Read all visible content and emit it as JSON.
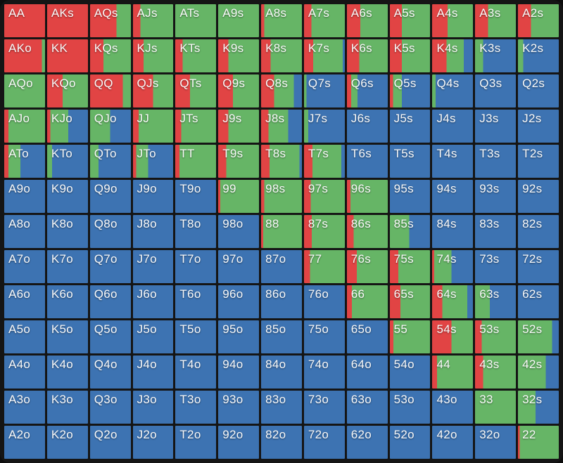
{
  "colors": {
    "red": "#e14444",
    "green": "#66b566",
    "blue": "#3d73b2",
    "board_background": "#151515",
    "label_text": "#fafafa"
  },
  "chart_data": {
    "type": "heatmap",
    "title": "",
    "description_keys": [
      "hand",
      "red_pct",
      "green_pct",
      "blue_pct"
    ],
    "rows": [
      [
        [
          "AA",
          100,
          0,
          0
        ],
        [
          "AKs",
          100,
          0,
          0
        ],
        [
          "AQs",
          65,
          35,
          0
        ],
        [
          "AJs",
          18,
          82,
          0
        ],
        [
          "ATs",
          0,
          100,
          0
        ],
        [
          "A9s",
          0,
          100,
          0
        ],
        [
          "A8s",
          8,
          92,
          0
        ],
        [
          "A7s",
          18,
          82,
          0
        ],
        [
          "A6s",
          33,
          67,
          0
        ],
        [
          "A5s",
          30,
          70,
          0
        ],
        [
          "A4s",
          38,
          62,
          0
        ],
        [
          "A3s",
          32,
          68,
          0
        ],
        [
          "A2s",
          32,
          68,
          0
        ]
      ],
      [
        [
          "AKo",
          92,
          8,
          0
        ],
        [
          "KK",
          100,
          0,
          0
        ],
        [
          "KQs",
          33,
          67,
          0
        ],
        [
          "KJs",
          26,
          74,
          0
        ],
        [
          "KTs",
          18,
          82,
          0
        ],
        [
          "K9s",
          25,
          75,
          0
        ],
        [
          "K8s",
          23,
          77,
          0
        ],
        [
          "K7s",
          22,
          73,
          5
        ],
        [
          "K6s",
          30,
          70,
          0
        ],
        [
          "K5s",
          30,
          70,
          0
        ],
        [
          "K4s",
          35,
          43,
          22
        ],
        [
          "K3s",
          0,
          20,
          80
        ],
        [
          "K2s",
          0,
          13,
          87
        ]
      ],
      [
        [
          "AQo",
          0,
          100,
          0
        ],
        [
          "KQo",
          38,
          62,
          0
        ],
        [
          "QQ",
          80,
          20,
          0
        ],
        [
          "QJs",
          50,
          50,
          0
        ],
        [
          "QTs",
          36,
          64,
          0
        ],
        [
          "Q9s",
          36,
          64,
          0
        ],
        [
          "Q8s",
          32,
          48,
          20
        ],
        [
          "Q7s",
          0,
          6,
          94
        ],
        [
          "Q6s",
          10,
          16,
          74
        ],
        [
          "Q5s",
          8,
          22,
          70
        ],
        [
          "Q4s",
          0,
          9,
          91
        ],
        [
          "Q3s",
          0,
          0,
          100
        ],
        [
          "Q2s",
          0,
          0,
          100
        ]
      ],
      [
        [
          "AJo",
          10,
          90,
          0
        ],
        [
          "KJo",
          8,
          44,
          48
        ],
        [
          "QJo",
          0,
          49,
          51
        ],
        [
          "JJ",
          14,
          86,
          0
        ],
        [
          "JTs",
          15,
          85,
          0
        ],
        [
          "J9s",
          25,
          75,
          0
        ],
        [
          "J8s",
          18,
          48,
          34
        ],
        [
          "J7s",
          0,
          10,
          90
        ],
        [
          "J6s",
          0,
          0,
          100
        ],
        [
          "J5s",
          0,
          0,
          100
        ],
        [
          "J4s",
          0,
          0,
          100
        ],
        [
          "J3s",
          0,
          0,
          100
        ],
        [
          "J2s",
          0,
          0,
          100
        ]
      ],
      [
        [
          "ATo",
          10,
          30,
          60
        ],
        [
          "KTo",
          0,
          12,
          88
        ],
        [
          "QTo",
          0,
          21,
          79
        ],
        [
          "JTo",
          8,
          30,
          62
        ],
        [
          "TT",
          10,
          90,
          0
        ],
        [
          "T9s",
          20,
          80,
          0
        ],
        [
          "T8s",
          21,
          73,
          6
        ],
        [
          "T7s",
          21,
          70,
          9
        ],
        [
          "T6s",
          0,
          0,
          100
        ],
        [
          "T5s",
          0,
          0,
          100
        ],
        [
          "T4s",
          0,
          0,
          100
        ],
        [
          "T3s",
          0,
          0,
          100
        ],
        [
          "T2s",
          0,
          0,
          100
        ]
      ],
      [
        [
          "A9o",
          0,
          0,
          100
        ],
        [
          "K9o",
          0,
          0,
          100
        ],
        [
          "Q9o",
          0,
          0,
          100
        ],
        [
          "J9o",
          0,
          0,
          100
        ],
        [
          "T9o",
          0,
          0,
          100
        ],
        [
          "99",
          5,
          95,
          0
        ],
        [
          "98s",
          8,
          92,
          0
        ],
        [
          "97s",
          16,
          84,
          0
        ],
        [
          "96s",
          9,
          91,
          0
        ],
        [
          "95s",
          0,
          0,
          100
        ],
        [
          "94s",
          0,
          0,
          100
        ],
        [
          "93s",
          0,
          0,
          100
        ],
        [
          "92s",
          0,
          0,
          100
        ]
      ],
      [
        [
          "A8o",
          0,
          0,
          100
        ],
        [
          "K8o",
          0,
          0,
          100
        ],
        [
          "Q8o",
          0,
          0,
          100
        ],
        [
          "J8o",
          0,
          0,
          100
        ],
        [
          "T8o",
          0,
          0,
          100
        ],
        [
          "98o",
          0,
          0,
          100
        ],
        [
          "88",
          5,
          95,
          0
        ],
        [
          "87s",
          19,
          81,
          0
        ],
        [
          "86s",
          16,
          84,
          0
        ],
        [
          "85s",
          0,
          48,
          52
        ],
        [
          "84s",
          0,
          0,
          100
        ],
        [
          "83s",
          0,
          0,
          100
        ],
        [
          "82s",
          0,
          0,
          100
        ]
      ],
      [
        [
          "A7o",
          0,
          0,
          100
        ],
        [
          "K7o",
          0,
          0,
          100
        ],
        [
          "Q7o",
          0,
          0,
          100
        ],
        [
          "J7o",
          0,
          0,
          100
        ],
        [
          "T7o",
          0,
          0,
          100
        ],
        [
          "97o",
          0,
          0,
          100
        ],
        [
          "87o",
          0,
          0,
          100
        ],
        [
          "77",
          15,
          85,
          0
        ],
        [
          "76s",
          24,
          76,
          0
        ],
        [
          "75s",
          21,
          79,
          0
        ],
        [
          "74s",
          5,
          42,
          53
        ],
        [
          "73s",
          0,
          0,
          100
        ],
        [
          "72s",
          0,
          0,
          100
        ]
      ],
      [
        [
          "A6o",
          0,
          0,
          100
        ],
        [
          "K6o",
          0,
          0,
          100
        ],
        [
          "Q6o",
          0,
          0,
          100
        ],
        [
          "J6o",
          0,
          0,
          100
        ],
        [
          "T6o",
          0,
          0,
          100
        ],
        [
          "96o",
          0,
          0,
          100
        ],
        [
          "86o",
          0,
          0,
          100
        ],
        [
          "76o",
          0,
          0,
          100
        ],
        [
          "66",
          12,
          88,
          0
        ],
        [
          "65s",
          26,
          74,
          0
        ],
        [
          "64s",
          25,
          61,
          14
        ],
        [
          "63s",
          0,
          36,
          64
        ],
        [
          "62s",
          0,
          0,
          100
        ]
      ],
      [
        [
          "A5o",
          0,
          0,
          100
        ],
        [
          "K5o",
          0,
          0,
          100
        ],
        [
          "Q5o",
          0,
          0,
          100
        ],
        [
          "J5o",
          0,
          0,
          100
        ],
        [
          "T5o",
          0,
          0,
          100
        ],
        [
          "95o",
          0,
          0,
          100
        ],
        [
          "85o",
          0,
          0,
          100
        ],
        [
          "75o",
          0,
          0,
          100
        ],
        [
          "65o",
          0,
          0,
          100
        ],
        [
          "55",
          9,
          91,
          0
        ],
        [
          "54s",
          47,
          53,
          0
        ],
        [
          "53s",
          16,
          84,
          0
        ],
        [
          "52s",
          0,
          84,
          16
        ]
      ],
      [
        [
          "A4o",
          0,
          0,
          100
        ],
        [
          "K4o",
          0,
          0,
          100
        ],
        [
          "Q4o",
          0,
          0,
          100
        ],
        [
          "J4o",
          0,
          0,
          100
        ],
        [
          "T4o",
          0,
          0,
          100
        ],
        [
          "94o",
          0,
          0,
          100
        ],
        [
          "84o",
          0,
          0,
          100
        ],
        [
          "74o",
          0,
          0,
          100
        ],
        [
          "64o",
          0,
          0,
          100
        ],
        [
          "54o",
          0,
          0,
          100
        ],
        [
          "44",
          12,
          88,
          0
        ],
        [
          "43s",
          20,
          80,
          0
        ],
        [
          "42s",
          0,
          68,
          32
        ]
      ],
      [
        [
          "A3o",
          0,
          0,
          100
        ],
        [
          "K3o",
          0,
          0,
          100
        ],
        [
          "Q3o",
          0,
          0,
          100
        ],
        [
          "J3o",
          0,
          0,
          100
        ],
        [
          "T3o",
          0,
          0,
          100
        ],
        [
          "93o",
          0,
          0,
          100
        ],
        [
          "83o",
          0,
          0,
          100
        ],
        [
          "73o",
          0,
          0,
          100
        ],
        [
          "63o",
          0,
          0,
          100
        ],
        [
          "53o",
          0,
          0,
          100
        ],
        [
          "43o",
          0,
          0,
          100
        ],
        [
          "33",
          0,
          100,
          0
        ],
        [
          "32s",
          0,
          43,
          57
        ]
      ],
      [
        [
          "A2o",
          0,
          0,
          100
        ],
        [
          "K2o",
          0,
          0,
          100
        ],
        [
          "Q2o",
          0,
          0,
          100
        ],
        [
          "J2o",
          0,
          0,
          100
        ],
        [
          "T2o",
          0,
          0,
          100
        ],
        [
          "92o",
          0,
          0,
          100
        ],
        [
          "82o",
          0,
          0,
          100
        ],
        [
          "72o",
          0,
          0,
          100
        ],
        [
          "62o",
          0,
          0,
          100
        ],
        [
          "52o",
          0,
          0,
          100
        ],
        [
          "42o",
          0,
          0,
          100
        ],
        [
          "32o",
          0,
          0,
          100
        ],
        [
          "22",
          4,
          96,
          0
        ]
      ]
    ]
  }
}
